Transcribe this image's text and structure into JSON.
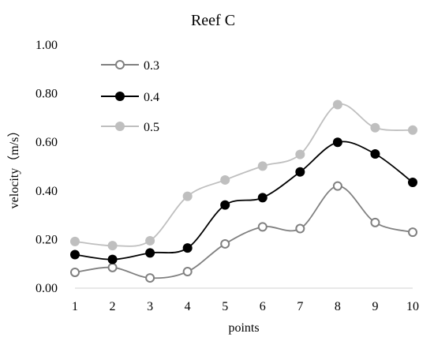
{
  "chart_data": {
    "type": "line",
    "title": "Reef C",
    "xlabel": "points",
    "ylabel": "velocity（m/s）",
    "x": [
      1,
      2,
      3,
      4,
      5,
      6,
      7,
      8,
      9,
      10
    ],
    "xlim": [
      1,
      10
    ],
    "ylim": [
      0,
      1.0
    ],
    "yticks": [
      "0.00",
      "0.20",
      "0.40",
      "0.60",
      "0.80",
      "1.00"
    ],
    "xticks": [
      "1",
      "2",
      "3",
      "4",
      "5",
      "6",
      "7",
      "8",
      "9",
      "10"
    ],
    "grid": false,
    "smooth": true,
    "legend_position": "top-left",
    "series": [
      {
        "name": "0.3",
        "color": "#808080",
        "marker": "open-circle",
        "values": [
          0.065,
          0.085,
          0.042,
          0.068,
          0.182,
          0.252,
          0.245,
          0.42,
          0.27,
          0.23
        ]
      },
      {
        "name": "0.4",
        "color": "#000000",
        "marker": "filled-circle",
        "values": [
          0.138,
          0.118,
          0.145,
          0.165,
          0.342,
          0.372,
          0.478,
          0.6,
          0.552,
          0.435
        ]
      },
      {
        "name": "0.5",
        "color": "#bfbfbf",
        "marker": "filled-circle",
        "values": [
          0.192,
          0.175,
          0.195,
          0.378,
          0.445,
          0.502,
          0.55,
          0.755,
          0.66,
          0.65
        ]
      }
    ]
  }
}
